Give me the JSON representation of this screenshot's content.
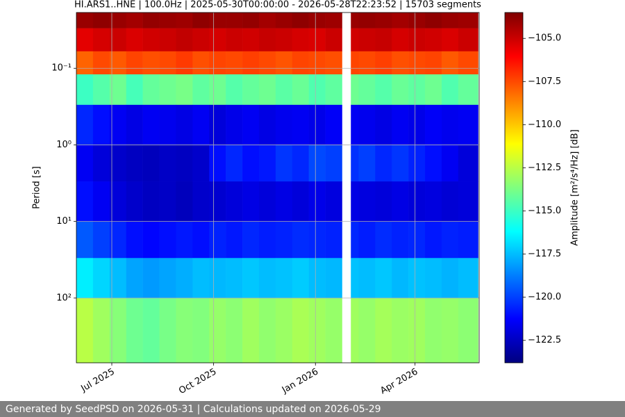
{
  "chart_data": {
    "type": "heatmap",
    "title": "HI.ARS1..HNE | 100.0Hz | 2025-05-30T00:00:00 - 2026-05-28T22:23:52 | 15703 segments",
    "ylabel": "Period [s]",
    "colorbar_label": "Amplitude [m²/s⁴/Hz] [dB]",
    "colormap": "jet",
    "yscale": "log",
    "grid": true,
    "xlim": [
      "2025-05-30T00:00:00",
      "2026-05-28T22:23:52"
    ],
    "xticks": [
      {
        "value": "2025-07",
        "label": "Jul 2025"
      },
      {
        "value": "2025-10",
        "label": "Oct 2025"
      },
      {
        "value": "2026-01",
        "label": "Jan 2026"
      },
      {
        "value": "2026-04",
        "label": "Apr 2026"
      }
    ],
    "ylim": [
      700,
      0.0187
    ],
    "yticks": [
      {
        "value": 0.1,
        "label": "10⁻¹"
      },
      {
        "value": 1,
        "label": "10⁰"
      },
      {
        "value": 10,
        "label": "10¹"
      },
      {
        "value": 100,
        "label": "10²"
      }
    ],
    "clim": [
      -123.8,
      -103.5
    ],
    "cticks": [
      {
        "value": -105,
        "label": "−105.0"
      },
      {
        "value": -107.5,
        "label": "−107.5"
      },
      {
        "value": -110,
        "label": "−110.0"
      },
      {
        "value": -112.5,
        "label": "−112.5"
      },
      {
        "value": -115,
        "label": "−115.0"
      },
      {
        "value": -117.5,
        "label": "−117.5"
      },
      {
        "value": -120,
        "label": "−120.0"
      },
      {
        "value": -122.5,
        "label": "−122.5"
      }
    ],
    "x_bins": [
      "2025-05-30",
      "2025-06-14",
      "2025-06-29",
      "2025-07-14",
      "2025-07-29",
      "2025-08-13",
      "2025-08-28",
      "2025-09-12",
      "2025-09-27",
      "2025-10-12",
      "2025-10-27",
      "2025-11-11",
      "2025-11-26",
      "2025-12-11",
      "2025-12-26",
      "2026-01-10",
      "2026-01-25",
      "2026-02-02",
      "2026-02-09",
      "2026-02-24",
      "2026-03-11",
      "2026-03-26",
      "2026-04-10",
      "2026-04-25",
      "2026-05-10",
      "2026-05-28"
    ],
    "y_bins": [
      0.0187,
      0.03,
      0.06,
      0.12,
      0.3,
      1,
      3,
      10,
      30,
      100,
      700
    ],
    "values": [
      [
        -104,
        -103.8,
        -104,
        -104.2,
        -103.9,
        -104,
        -104.1,
        -103.8,
        -104,
        -104,
        -103.9,
        -104.2,
        -104,
        -103.8,
        -104,
        -104.1,
        null,
        -104,
        -103.9,
        -104,
        -104.2,
        -104,
        -103.8,
        -104,
        -104.1
      ],
      [
        -105.5,
        -105.2,
        -105,
        -105.3,
        -105.1,
        -105,
        -104.8,
        -105,
        -105.2,
        -105,
        -105.1,
        -104.9,
        -105,
        -105.2,
        -105.3,
        -105,
        null,
        -105.1,
        -105,
        -104.9,
        -105.2,
        -105,
        -105.1,
        -105.3,
        -105
      ],
      [
        -108,
        -107.5,
        -107.8,
        -107.4,
        -107.6,
        -107.5,
        -107.2,
        -107.6,
        -107.4,
        -107.5,
        -107.3,
        -107.5,
        -107.7,
        -107.4,
        -107.5,
        -107.6,
        null,
        -107.4,
        -107.5,
        -107.3,
        -107.6,
        -107.5,
        -107.4,
        -107.8,
        -107.5
      ],
      [
        -115,
        -114.5,
        -114,
        -114.8,
        -114.2,
        -114,
        -113.8,
        -114.3,
        -114,
        -114.5,
        -114.2,
        -114,
        -114.4,
        -114.1,
        -114.6,
        -114.3,
        null,
        -114,
        -114.2,
        -114.5,
        -114.1,
        -114.3,
        -114,
        -114.6,
        -114.2
      ],
      [
        -120.5,
        -121,
        -121.5,
        -121.8,
        -121.5,
        -121.6,
        -121.8,
        -121.5,
        -122,
        -121.7,
        -121.5,
        -121.8,
        -121.6,
        -121.5,
        -121.7,
        -121.4,
        null,
        -121.5,
        -121.6,
        -121.8,
        -121.5,
        -121.7,
        -121.4,
        -121.6,
        -121.5
      ],
      [
        -121.5,
        -122,
        -122.3,
        -122.5,
        -122.6,
        -122.4,
        -122.5,
        -122.3,
        -121,
        -120.5,
        -121,
        -120.8,
        -120.2,
        -120.5,
        -119.8,
        -120,
        null,
        -120.3,
        -120,
        -120.5,
        -120.2,
        -120.6,
        -121,
        -121.5,
        -122
      ],
      [
        -121,
        -121.5,
        -122,
        -122.3,
        -122.5,
        -122.4,
        -122.6,
        -122.3,
        -122.2,
        -122,
        -121.8,
        -122,
        -121.8,
        -122,
        -121.7,
        -121.9,
        null,
        -121.8,
        -121.9,
        -122,
        -121.8,
        -122,
        -121.9,
        -122.1,
        -122
      ],
      [
        -119.5,
        -120,
        -120.5,
        -121,
        -121.2,
        -121,
        -120.8,
        -121,
        -120.6,
        -120.8,
        -120.5,
        -120.7,
        -120.6,
        -120.4,
        -120.5,
        -120.6,
        null,
        -120.5,
        -120.7,
        -120.4,
        -120.6,
        -120.5,
        -120.8,
        -120.6,
        -120.7
      ],
      [
        -116.5,
        -117,
        -117.5,
        -118,
        -118.2,
        -118,
        -117.8,
        -117.5,
        -117.6,
        -117.5,
        -117.3,
        -117.5,
        -117.4,
        -117.2,
        -117.5,
        -117.6,
        null,
        -117.4,
        -117.5,
        -117.3,
        -117.6,
        -117.4,
        -117.5,
        -117.7,
        -117.5
      ],
      [
        -112.5,
        -113,
        -113.5,
        -114,
        -114.2,
        -113.8,
        -113.5,
        -113.6,
        -113.2,
        -113.4,
        -113,
        -113.3,
        -113.1,
        -112.8,
        -113,
        -113.2,
        null,
        -113,
        -113.2,
        -112.9,
        -113.1,
        -113,
        -113.3,
        -113.2,
        -113.4
      ]
    ],
    "footer": "Generated by SeedPSD on 2026-05-31 | Calculations updated on 2026-05-29"
  }
}
